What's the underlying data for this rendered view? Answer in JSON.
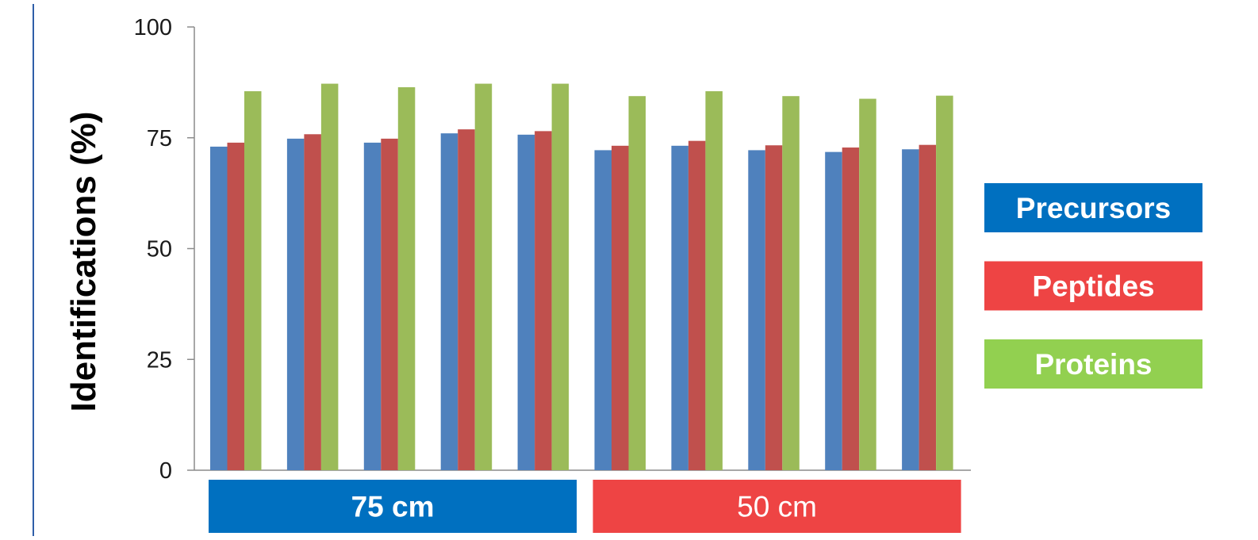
{
  "chart_data": {
    "type": "bar",
    "title": "",
    "xlabel": "",
    "ylabel": "Identifications (%)",
    "ylim": [
      0,
      100
    ],
    "yticks": [
      "0",
      "25",
      "50",
      "75",
      "100"
    ],
    "grid": false,
    "legend_placement": "right",
    "categories": [
      "",
      "",
      "",
      "",
      "",
      "",
      "",
      "",
      "",
      ""
    ],
    "series": [
      {
        "name": "Precursors",
        "color": "#4F81BD",
        "values": [
          73.0,
          74.8,
          73.9,
          76.0,
          75.7,
          72.2,
          73.2,
          72.2,
          71.8,
          72.4
        ]
      },
      {
        "name": "Peptides",
        "color": "#C0504D",
        "values": [
          73.9,
          75.8,
          74.8,
          76.9,
          76.5,
          73.2,
          74.3,
          73.3,
          72.8,
          73.4
        ]
      },
      {
        "name": "Proteins",
        "color": "#9BBB59",
        "values": [
          85.5,
          87.2,
          86.4,
          87.2,
          87.2,
          84.4,
          85.5,
          84.4,
          83.8,
          84.5
        ]
      }
    ],
    "legend": [
      {
        "label": "Precursors",
        "color": "#0070C0"
      },
      {
        "label": "Peptides",
        "color": "#EE4444"
      },
      {
        "label": "Proteins",
        "color": "#92D050"
      }
    ],
    "groups": [
      {
        "label": "75 cm",
        "color": "#0070C0",
        "bold": true,
        "start": 0,
        "end": 4
      },
      {
        "label": "50 cm",
        "color": "#EE4444",
        "bold": false,
        "start": 5,
        "end": 9
      }
    ]
  }
}
